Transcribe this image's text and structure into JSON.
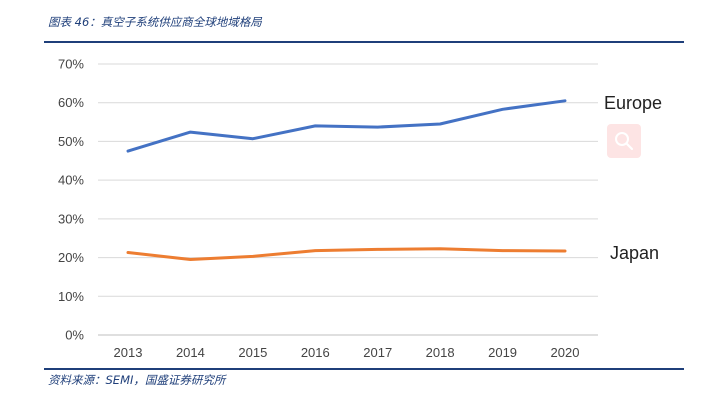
{
  "figure": {
    "title": "图表 46：真空子系统供应商全球地域格局",
    "source": "资料来源：SEMI，国盛证券研究所"
  },
  "colors": {
    "accent": "#1f3f7a",
    "europe": "#4472c4",
    "japan": "#ed7d31",
    "grid": "#d9d9d9",
    "zoom_bg": "#fde4e4"
  },
  "zoom_button": {
    "icon": "magnifier-icon"
  },
  "chart_data": {
    "type": "line",
    "x": [
      2013,
      2014,
      2015,
      2016,
      2017,
      2018,
      2019,
      2020
    ],
    "x_tick_labels": [
      "2013",
      "2014",
      "2015",
      "2016",
      "2017",
      "2018",
      "2019",
      "2020"
    ],
    "y_ticks": [
      0,
      10,
      20,
      30,
      40,
      50,
      60,
      70
    ],
    "y_tick_labels": [
      "0%",
      "10%",
      "20%",
      "30%",
      "40%",
      "50%",
      "60%",
      "70%"
    ],
    "ylim": [
      0,
      70
    ],
    "grid": true,
    "legend": "inline-right",
    "series": [
      {
        "name": "Europe",
        "color": "#4472c4",
        "values": [
          47.5,
          52.4,
          50.7,
          54.0,
          53.7,
          54.5,
          58.3,
          60.5
        ]
      },
      {
        "name": "Japan",
        "color": "#ed7d31",
        "values": [
          21.3,
          19.5,
          20.3,
          21.8,
          22.1,
          22.3,
          21.8,
          21.7
        ]
      }
    ]
  }
}
